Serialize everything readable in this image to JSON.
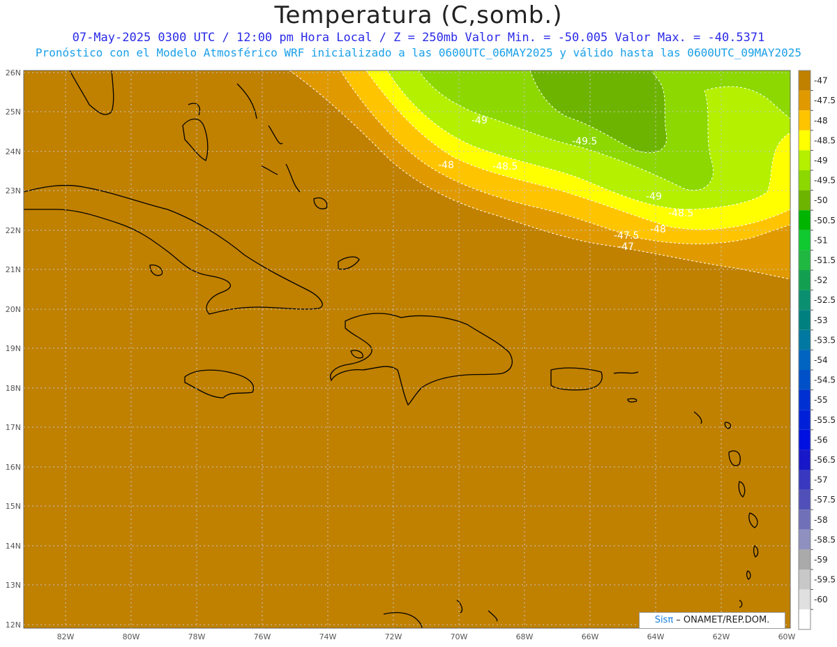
{
  "header": {
    "title": "Temperatura (C,somb.)",
    "subtitle_line1": "07-May-2025  0300 UTC / 12:00 pm Hora Local / Z = 250mb  Valor Min. = -50.005  Valor Max. = -40.5371",
    "subtitle_line2": "Pronóstico con el Modelo Atmosférico WRF inicializado a las 0600UTC_06MAY2025 y válido hasta las  0600UTC_09MAY2025"
  },
  "map": {
    "lon_range": [
      -83.2,
      -60
    ],
    "lat_range": [
      11.9,
      26.1
    ],
    "lon_ticks": [
      "82W",
      "80W",
      "78W",
      "76W",
      "74W",
      "72W",
      "70W",
      "68W",
      "66W",
      "64W",
      "62W",
      "60W"
    ],
    "lat_ticks": [
      "12N",
      "13N",
      "14N",
      "15N",
      "16N",
      "17N",
      "18N",
      "19N",
      "20N",
      "21N",
      "22N",
      "23N",
      "24N",
      "25N",
      "26N"
    ],
    "contour_labels": [
      "-49",
      "-49.5",
      "-48",
      "-48.5",
      "-49",
      "-48.5",
      "-48",
      "-47.5",
      "-47"
    ],
    "colors": {
      "band_-47": "#c08000",
      "band_-47.5": "#e09a00",
      "band_-48": "#ffc400",
      "band_-48.5": "#ffff00",
      "band_-49": "#b4f000",
      "band_-49.5": "#8cd800",
      "band_-50": "#6db400"
    }
  },
  "colorbar": {
    "labels": [
      "-47",
      "-47.5",
      "-48",
      "-48.5",
      "-49",
      "-49.5",
      "-50",
      "-50.5",
      "-51",
      "-51.5",
      "-52",
      "-52.5",
      "-53",
      "-53.5",
      "-54",
      "-54.5",
      "-55",
      "-55.5",
      "-56",
      "-56.5",
      "-57",
      "-57.5",
      "-58",
      "-58.5",
      "-59",
      "-59.5",
      "-60"
    ],
    "colors": [
      "#c08000",
      "#e09a00",
      "#ffc400",
      "#ffff00",
      "#b4f000",
      "#8cd800",
      "#6db400",
      "#00b400",
      "#10c830",
      "#20b840",
      "#12a050",
      "#0a9070",
      "#00807e",
      "#0078a0",
      "#0064c0",
      "#0050c8",
      "#0030d0",
      "#0020d8",
      "#0010e0",
      "#1818c8",
      "#3838c0",
      "#5050b8",
      "#7070b8",
      "#9090c0",
      "#aaaaaa",
      "#c8c8c8",
      "#e0e0e0",
      "#ffffff"
    ]
  },
  "credit": {
    "sis": "Sisπ",
    "text": " – ONAMET/REP.DOM."
  }
}
